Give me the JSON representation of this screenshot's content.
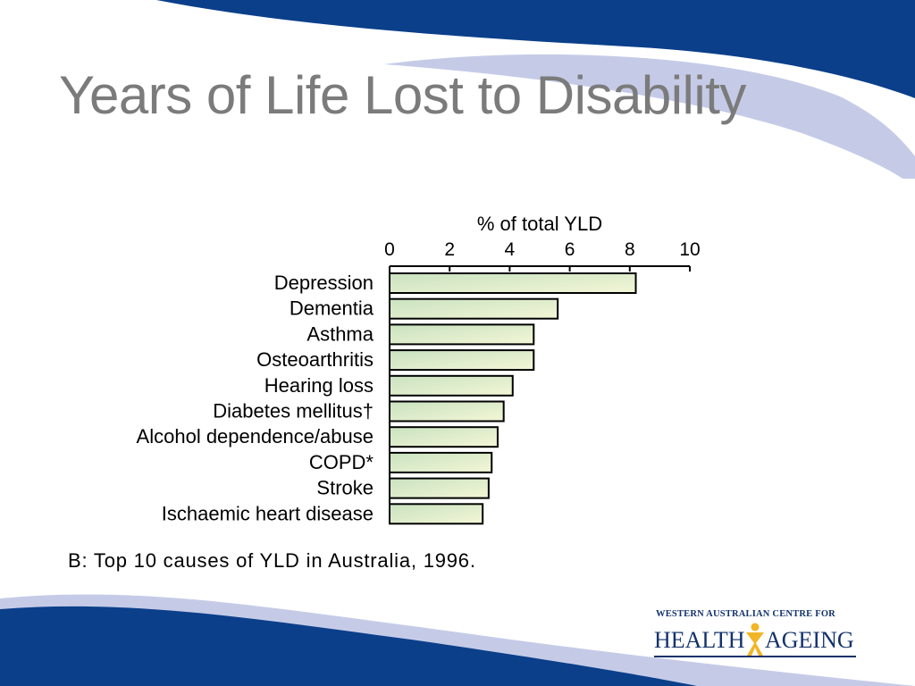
{
  "slide": {
    "title": "Years of Life Lost to Disability"
  },
  "chart_data": {
    "type": "bar",
    "orientation": "horizontal",
    "axis_title": "% of total YLD",
    "xlim": [
      0,
      10
    ],
    "ticks": [
      "0",
      "2",
      "4",
      "6",
      "8",
      "10"
    ],
    "categories": [
      "Depression",
      "Dementia",
      "Asthma",
      "Osteoarthritis",
      "Hearing loss",
      "Diabetes mellitus†",
      "Alcohol dependence/abuse",
      "COPD*",
      "Stroke",
      "Ischaemic heart disease"
    ],
    "values": [
      8.2,
      5.6,
      4.8,
      4.8,
      4.1,
      3.8,
      3.6,
      3.4,
      3.3,
      3.1
    ],
    "caption": "B: Top 10 causes of YLD in Australia, 1996.",
    "bar_color_start": "#c9e2c0",
    "bar_color_end": "#f3f6d6"
  },
  "logo": {
    "subtitle": "WESTERN AUSTRALIAN CENTRE FOR",
    "word_left": "HEALTH",
    "word_right": "AGEING"
  },
  "colors": {
    "brand_blue": "#0b3f8a",
    "light_swoosh": "#bcc3e3",
    "title_gray": "#7b7b7b",
    "logo_navy": "#13326b",
    "logo_gold": "#f2b526"
  }
}
